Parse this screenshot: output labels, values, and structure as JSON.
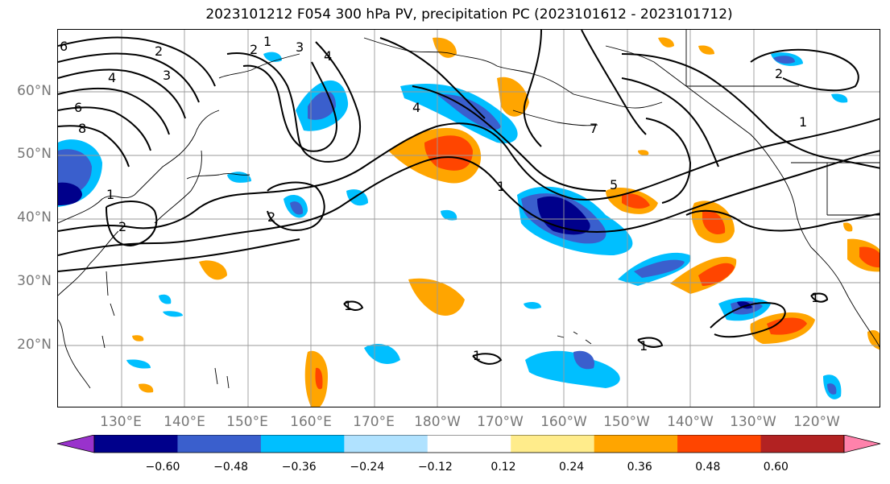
{
  "title": "2023101212 F054 300 hPa PV, precipitation PC (2023101612 - 2023101712)",
  "lat_labels": [
    "60°N",
    "50°N",
    "40°N",
    "30°N",
    "20°N"
  ],
  "lon_labels": [
    "130°E",
    "140°E",
    "150°E",
    "160°E",
    "170°E",
    "180°W",
    "170°W",
    "160°W",
    "150°W",
    "140°W",
    "130°W",
    "120°W"
  ],
  "colorbar": {
    "ticks": [
      "−0.60",
      "−0.48",
      "−0.36",
      "−0.24",
      "−0.12",
      "0.12",
      "0.24",
      "0.36",
      "0.48",
      "0.60"
    ],
    "colors": [
      "#9932CC",
      "#00008B",
      "#3A5FCD",
      "#00BFFF",
      "#B0E2FF",
      "#FFFFFF",
      "#FFEC8B",
      "#FFA500",
      "#FF4500",
      "#B22222",
      "#FF82AB"
    ]
  },
  "contour_labels": [
    "6",
    "2",
    "4",
    "6",
    "8",
    "3",
    "2",
    "1",
    "4",
    "3",
    "2",
    "1",
    "5",
    "7",
    "1",
    "2",
    "1",
    "1",
    "1",
    "1",
    "1",
    "4",
    "2"
  ]
}
